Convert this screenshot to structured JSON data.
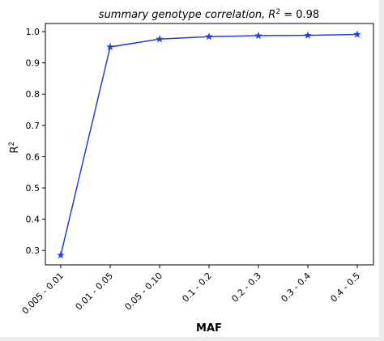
{
  "chart_data": {
    "type": "line",
    "title_prefix": "summary genotype correlation,",
    "title_r": "R",
    "title_sup": "2",
    "title_value": " = 0.98",
    "xlabel": "MAF",
    "ylabel_base": "R",
    "ylabel_sup": "2",
    "categories": [
      "0.005 - 0.01",
      "0.01 - 0.05",
      "0.05 - 0.10",
      "0.1 - 0.2",
      "0.2 - 0.3",
      "0.3 - 0.4",
      "0.4 - 0.5"
    ],
    "series": [
      {
        "values": [
          0.285,
          0.951,
          0.976,
          0.984,
          0.987,
          0.988,
          0.991
        ],
        "color": "#1f3fdd",
        "marker": "star"
      }
    ],
    "yticks": [
      0.3,
      0.4,
      0.5,
      0.6,
      0.7,
      0.8,
      0.9,
      1.0
    ],
    "ytick_labels": [
      "0.3",
      "0.4",
      "0.5",
      "0.6",
      "0.7",
      "0.8",
      "0.9",
      "1.0"
    ],
    "ylim": [
      0.254,
      1.026
    ],
    "grid": false,
    "legend": "none"
  }
}
